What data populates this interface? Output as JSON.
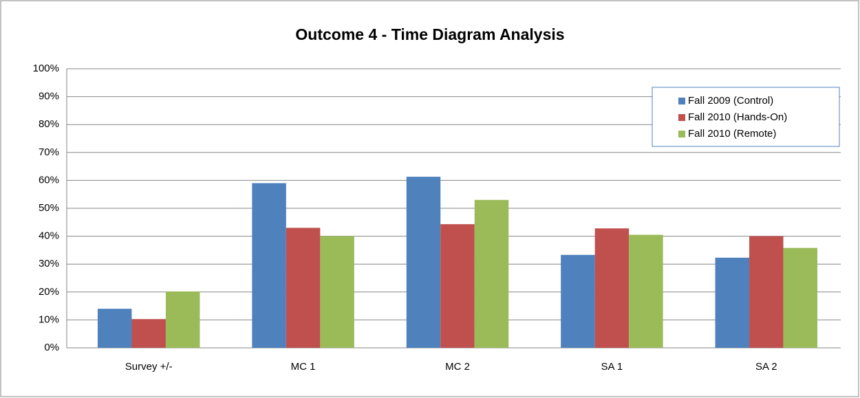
{
  "chart_data": {
    "type": "bar",
    "title": "Outcome 4 - Time Diagram Analysis",
    "categories": [
      "Survey +/-",
      "MC 1",
      "MC 2",
      "SA 1",
      "SA 2"
    ],
    "series": [
      {
        "name": "Fall 2009 (Control)",
        "color": "#4f81bd",
        "values": [
          14,
          59,
          61.3,
          33.3,
          32.3
        ]
      },
      {
        "name": "Fall 2010 (Hands-On)",
        "color": "#c0504d",
        "values": [
          10.3,
          43,
          44.3,
          42.8,
          40
        ]
      },
      {
        "name": "Fall 2010 (Remote)",
        "color": "#9bbb59",
        "values": [
          20.2,
          40,
          53,
          40.5,
          35.8
        ]
      }
    ],
    "ylim": [
      0,
      100
    ],
    "yticks": [
      {
        "value": 0,
        "label": "0%"
      },
      {
        "value": 10,
        "label": "10%"
      },
      {
        "value": 20,
        "label": "20%"
      },
      {
        "value": 30,
        "label": "30%"
      },
      {
        "value": 40,
        "label": "40%"
      },
      {
        "value": 50,
        "label": "50%"
      },
      {
        "value": 60,
        "label": "60%"
      },
      {
        "value": 70,
        "label": "70%"
      },
      {
        "value": 80,
        "label": "80%"
      },
      {
        "value": 90,
        "label": "90%"
      },
      {
        "value": 100,
        "label": "100%"
      }
    ],
    "grid": true,
    "legend": "top-right"
  }
}
